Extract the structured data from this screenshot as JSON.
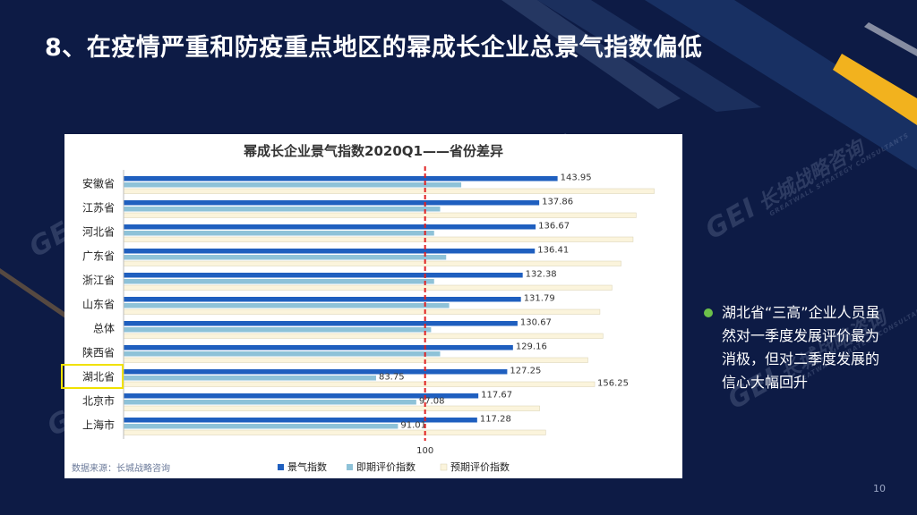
{
  "slide": {
    "title": "8、在疫情严重和防疫重点地区的幂成长企业总景气指数偏低",
    "source": "数据来源：长城战略咨询",
    "page_number": "10",
    "bullet": "湖北省“三高”企业人员虽然对一季度发展评价最为消极，但对二季度发展的信心大幅回升",
    "watermark": {
      "logo": "GEI",
      "name": "长城战略咨询",
      "sub": "GREATWALL STRATEGY CONSULTANTS"
    }
  },
  "colors": {
    "background": "#0d1b45",
    "series1": "#1f5fbf",
    "series2": "#8ec2d8",
    "series3": "#fbf4dc",
    "reference": "#e02020",
    "highlight": "#f0e100",
    "accent_yellow": "#f2b21e"
  },
  "chart_data": {
    "type": "bar",
    "orientation": "horizontal",
    "title": "幂成长企业景气指数2020Q1——省份差异",
    "categories": [
      "安徽省",
      "江苏省",
      "河北省",
      "广东省",
      "浙江省",
      "山东省",
      "总体",
      "陕西省",
      "湖北省",
      "北京市",
      "上海市"
    ],
    "series": [
      {
        "name": "景气指数",
        "values": [
          143.95,
          137.86,
          136.67,
          136.41,
          132.38,
          131.79,
          130.67,
          129.16,
          127.25,
          117.67,
          117.28
        ],
        "labels": [
          "143.95",
          "137.86",
          "136.67",
          "136.41",
          "132.38",
          "131.79",
          "130.67",
          "129.16",
          "127.25",
          "117.67",
          "117.28"
        ]
      },
      {
        "name": "即期评价指数",
        "values": [
          112,
          105,
          103,
          107,
          103,
          108,
          102,
          105,
          83.75,
          97.08,
          91.01
        ],
        "labels": [
          null,
          null,
          null,
          null,
          null,
          null,
          null,
          null,
          "83.75",
          "97.08",
          "91.01"
        ]
      },
      {
        "name": "预期评价指数",
        "values": [
          176,
          170,
          169,
          165,
          162,
          158,
          159,
          154,
          156.25,
          138,
          140
        ],
        "labels": [
          null,
          null,
          null,
          null,
          null,
          null,
          null,
          null,
          "156.25",
          null,
          null
        ]
      }
    ],
    "reference_line": {
      "value": 100,
      "label": "100",
      "style": "dashed"
    },
    "xlim": [
      0,
      180
    ],
    "legend_position": "bottom",
    "grid": false,
    "highlighted_category": "湖北省"
  }
}
